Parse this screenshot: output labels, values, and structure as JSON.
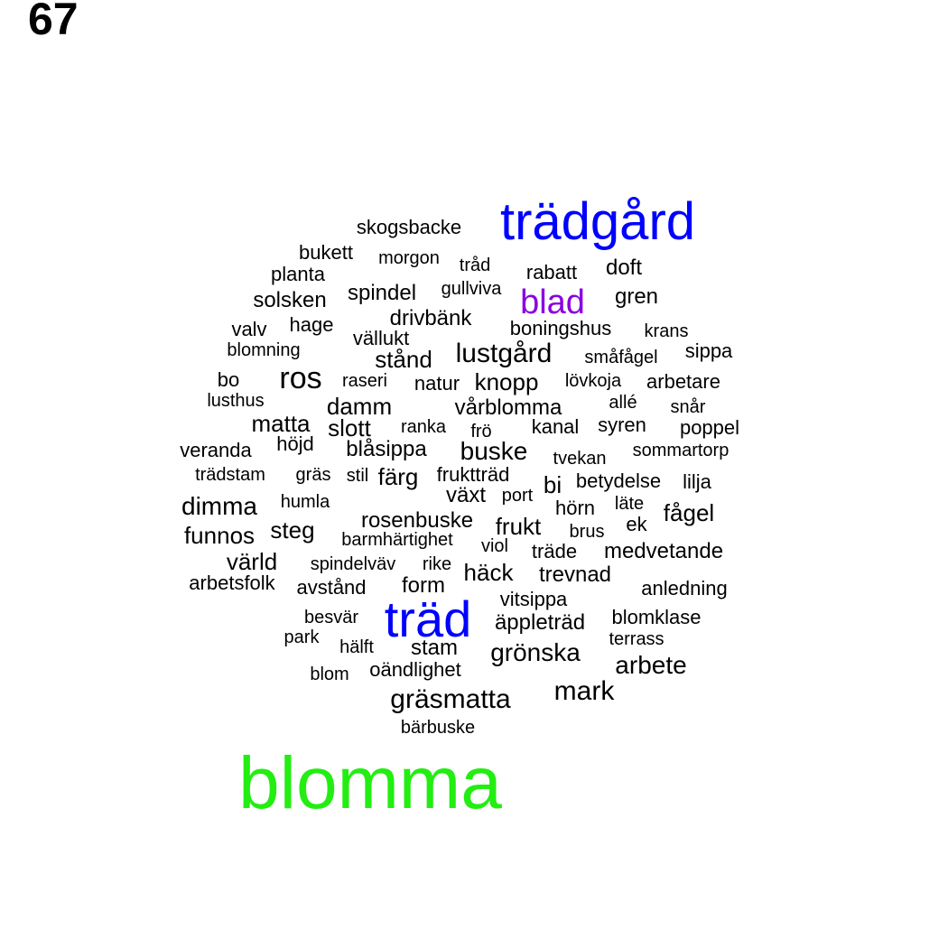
{
  "page_number": "67",
  "colors": {
    "large": "#0000ff",
    "medium": "#8a00e0",
    "largest": "#22ee11",
    "default": "#000000"
  },
  "words": [
    {
      "text": "blomma",
      "color": "largest"
    },
    {
      "text": "trädgård",
      "color": "large"
    },
    {
      "text": "träd",
      "color": "large"
    },
    {
      "text": "blad",
      "color": "medium"
    },
    {
      "text": "skogsbacke"
    },
    {
      "text": "bukett"
    },
    {
      "text": "morgon"
    },
    {
      "text": "tråd"
    },
    {
      "text": "rabatt"
    },
    {
      "text": "doft"
    },
    {
      "text": "planta"
    },
    {
      "text": "gullviva"
    },
    {
      "text": "solsken"
    },
    {
      "text": "spindel"
    },
    {
      "text": "gren"
    },
    {
      "text": "drivbänk"
    },
    {
      "text": "valv"
    },
    {
      "text": "hage"
    },
    {
      "text": "boningshus"
    },
    {
      "text": "krans"
    },
    {
      "text": "vällukt"
    },
    {
      "text": "blomning"
    },
    {
      "text": "sippa"
    },
    {
      "text": "lustgård"
    },
    {
      "text": "stånd"
    },
    {
      "text": "småfågel"
    },
    {
      "text": "ros"
    },
    {
      "text": "bo"
    },
    {
      "text": "raseri"
    },
    {
      "text": "natur"
    },
    {
      "text": "knopp"
    },
    {
      "text": "lövkoja"
    },
    {
      "text": "arbetare"
    },
    {
      "text": "lusthus"
    },
    {
      "text": "allé"
    },
    {
      "text": "damm"
    },
    {
      "text": "vårblomma"
    },
    {
      "text": "snår"
    },
    {
      "text": "matta"
    },
    {
      "text": "slott"
    },
    {
      "text": "ranka"
    },
    {
      "text": "frö"
    },
    {
      "text": "kanal"
    },
    {
      "text": "syren"
    },
    {
      "text": "poppel"
    },
    {
      "text": "höjd"
    },
    {
      "text": "veranda"
    },
    {
      "text": "blåsippa"
    },
    {
      "text": "buske"
    },
    {
      "text": "sommartorp"
    },
    {
      "text": "tvekan"
    },
    {
      "text": "trädstam"
    },
    {
      "text": "gräs"
    },
    {
      "text": "stil"
    },
    {
      "text": "färg"
    },
    {
      "text": "fruktträd"
    },
    {
      "text": "bi"
    },
    {
      "text": "betydelse"
    },
    {
      "text": "lilja"
    },
    {
      "text": "växt"
    },
    {
      "text": "port"
    },
    {
      "text": "dimma"
    },
    {
      "text": "humla"
    },
    {
      "text": "hörn"
    },
    {
      "text": "läte"
    },
    {
      "text": "fågel"
    },
    {
      "text": "rosenbuske"
    },
    {
      "text": "ek"
    },
    {
      "text": "frukt"
    },
    {
      "text": "steg"
    },
    {
      "text": "funnos"
    },
    {
      "text": "brus"
    },
    {
      "text": "barmhärtighet"
    },
    {
      "text": "viol"
    },
    {
      "text": "träde"
    },
    {
      "text": "medvetande"
    },
    {
      "text": "värld"
    },
    {
      "text": "spindelväv"
    },
    {
      "text": "rike"
    },
    {
      "text": "häck"
    },
    {
      "text": "trevnad"
    },
    {
      "text": "arbetsfolk"
    },
    {
      "text": "avstånd"
    },
    {
      "text": "form"
    },
    {
      "text": "anledning"
    },
    {
      "text": "vitsippa"
    },
    {
      "text": "besvär"
    },
    {
      "text": "äppleträd"
    },
    {
      "text": "blomklase"
    },
    {
      "text": "park"
    },
    {
      "text": "terrass"
    },
    {
      "text": "hälft"
    },
    {
      "text": "stam"
    },
    {
      "text": "grönska"
    },
    {
      "text": "arbete"
    },
    {
      "text": "blom"
    },
    {
      "text": "oändlighet"
    },
    {
      "text": "mark"
    },
    {
      "text": "gräsmatta"
    },
    {
      "text": "bärbuske"
    }
  ]
}
